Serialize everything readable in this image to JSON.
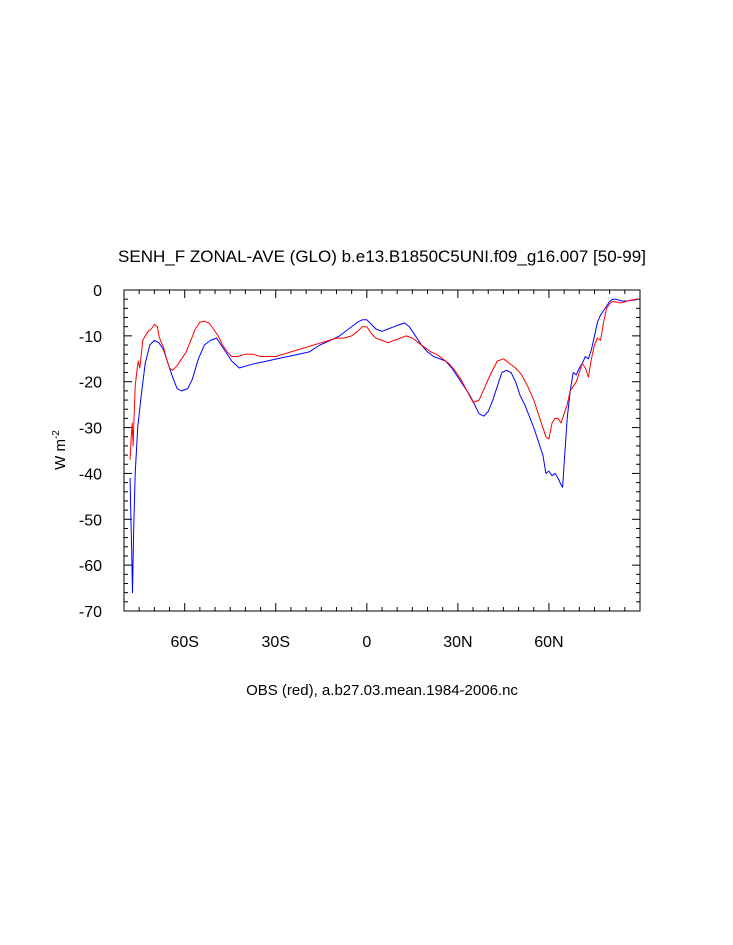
{
  "chart_data": {
    "type": "line",
    "title": "SENH_F ZONAL-AVE (GLO) b.e13.B1850C5UNI.f09_g16.007 [50-99]",
    "xlabel": "OBS (red), a.b27.03.mean.1984-2006.nc",
    "ylabel_main": "W m",
    "ylabel_sup": "-2",
    "xlim": [
      -80,
      90
    ],
    "ylim": [
      -70,
      0
    ],
    "x_ticks": [
      {
        "value": -60,
        "label": "60S"
      },
      {
        "value": -30,
        "label": "30S"
      },
      {
        "value": 0,
        "label": "0"
      },
      {
        "value": 30,
        "label": "30N"
      },
      {
        "value": 60,
        "label": "60N"
      }
    ],
    "y_ticks": [
      {
        "value": 0,
        "label": "0"
      },
      {
        "value": -10,
        "label": "-10"
      },
      {
        "value": -20,
        "label": "-20"
      },
      {
        "value": -30,
        "label": "-30"
      },
      {
        "value": -40,
        "label": "-40"
      },
      {
        "value": -50,
        "label": "-50"
      },
      {
        "value": -60,
        "label": "-60"
      },
      {
        "value": -70,
        "label": "-70"
      }
    ],
    "grid": false,
    "series": [
      {
        "color": "#0000ff",
        "x": [
          -78,
          -77.8,
          -77.5,
          -77.2,
          -76.8,
          -76.3,
          -75.5,
          -74.5,
          -73,
          -71.5,
          -70,
          -68.5,
          -67,
          -65.5,
          -64,
          -62.5,
          -61,
          -59,
          -57.5,
          -55.5,
          -53.5,
          -51.5,
          -49.5,
          -47,
          -44.5,
          -42,
          -39.5,
          -36.5,
          -33,
          -29.5,
          -26,
          -22.5,
          -19,
          -15.5,
          -12,
          -9,
          -6,
          -3,
          -1.5,
          0,
          1.5,
          3,
          5,
          7,
          9,
          11,
          12.5,
          14,
          16,
          18,
          20,
          22,
          24,
          26,
          28,
          30,
          32,
          34,
          35.5,
          37,
          38.5,
          40,
          41.5,
          43,
          44.5,
          46,
          47.5,
          49,
          50.5,
          52,
          53.5,
          55,
          56.5,
          58,
          59,
          60,
          61,
          62,
          63,
          64,
          64.5,
          65,
          66,
          67,
          68,
          69,
          70,
          71,
          72,
          73,
          74,
          75,
          76,
          77,
          78,
          79,
          80,
          81,
          82,
          83,
          84,
          85,
          86,
          87,
          88,
          89
        ],
        "y": [
          -41,
          -48,
          -56,
          -66,
          -52,
          -40,
          -30,
          -24,
          -16,
          -12,
          -11,
          -11.5,
          -13,
          -16,
          -19,
          -21.5,
          -22,
          -21.5,
          -19.5,
          -15,
          -12,
          -11,
          -10.5,
          -13,
          -15.5,
          -17,
          -16.5,
          -16,
          -15.5,
          -15,
          -14.5,
          -14,
          -13.5,
          -12,
          -11,
          -10,
          -8.5,
          -7,
          -6.5,
          -6.5,
          -7.5,
          -8.5,
          -9,
          -8.5,
          -8,
          -7.5,
          -7.2,
          -8,
          -10,
          -12,
          -13.5,
          -14.5,
          -15,
          -15.5,
          -17,
          -19,
          -21,
          -23,
          -25,
          -27,
          -27.5,
          -26.5,
          -24,
          -21,
          -18,
          -17.5,
          -18,
          -20,
          -23,
          -25,
          -27.5,
          -30,
          -33,
          -36,
          -40,
          -39.5,
          -40.5,
          -40,
          -41,
          -42.5,
          -43,
          -38,
          -28,
          -22,
          -18,
          -18.5,
          -17,
          -16,
          -14.5,
          -15,
          -13,
          -10,
          -7,
          -5.5,
          -4.5,
          -3.5,
          -2.5,
          -2,
          -2,
          -2.2,
          -2.4,
          -2.4,
          -2.4,
          -2.3,
          -2.2,
          -2.1
        ]
      },
      {
        "color": "#ff0000",
        "x": [
          -78,
          -77.7,
          -77.3,
          -77,
          -76.7,
          -76.3,
          -75.8,
          -75.3,
          -74.8,
          -74.3,
          -73.8,
          -73,
          -72,
          -71,
          -70,
          -69,
          -68.5,
          -68,
          -67,
          -66,
          -65,
          -64,
          -62.5,
          -61,
          -59.5,
          -58,
          -56.5,
          -55,
          -53.5,
          -52,
          -50.5,
          -49,
          -47.5,
          -46,
          -44.5,
          -42.5,
          -40,
          -37.5,
          -35,
          -32.5,
          -30,
          -27.5,
          -25,
          -22.5,
          -20,
          -17.5,
          -15,
          -12.5,
          -10,
          -7.5,
          -5,
          -3,
          -1.5,
          0,
          1.5,
          3,
          5,
          7,
          9,
          11,
          13,
          15,
          17,
          19,
          21,
          23,
          25,
          27,
          29,
          31,
          33,
          35,
          37,
          39,
          41,
          43,
          45,
          47,
          49,
          51,
          53,
          55,
          57,
          59,
          60,
          61,
          62,
          63,
          64,
          65,
          66,
          67,
          68,
          69,
          70,
          71,
          72,
          73,
          74,
          75,
          76,
          77,
          78,
          79,
          80,
          81,
          82,
          83,
          84,
          85,
          86,
          87,
          88,
          89
        ],
        "y": [
          -37,
          -33,
          -29,
          -34,
          -28,
          -21,
          -18,
          -15.5,
          -17,
          -14,
          -11,
          -10,
          -9,
          -8.5,
          -7.5,
          -8,
          -10,
          -11,
          -12.5,
          -15,
          -17,
          -17.5,
          -16.5,
          -15,
          -13.5,
          -11,
          -8.5,
          -7,
          -6.8,
          -7.2,
          -8.5,
          -10,
          -12,
          -13.5,
          -14.5,
          -14.5,
          -14,
          -14,
          -14.5,
          -14.5,
          -14.5,
          -14,
          -13.5,
          -13,
          -12.5,
          -12,
          -11.5,
          -11,
          -10.5,
          -10.5,
          -10,
          -9,
          -8,
          -8,
          -9.5,
          -10.5,
          -11,
          -11.5,
          -11,
          -10.5,
          -10,
          -10.5,
          -11.5,
          -12.5,
          -13.5,
          -14,
          -15,
          -16,
          -17.5,
          -19.5,
          -22,
          -24.5,
          -24,
          -21,
          -18,
          -15.5,
          -15,
          -16,
          -17,
          -18.5,
          -21,
          -24,
          -28,
          -32,
          -32.5,
          -29,
          -28,
          -28,
          -29,
          -27,
          -25,
          -22,
          -21,
          -20,
          -18,
          -16,
          -17,
          -19,
          -15,
          -12,
          -10.5,
          -11,
          -7,
          -4,
          -3,
          -2.5,
          -2.6,
          -2.8,
          -2.8,
          -2.6,
          -2.4,
          -2.2,
          -2.1,
          -2
        ]
      }
    ]
  }
}
